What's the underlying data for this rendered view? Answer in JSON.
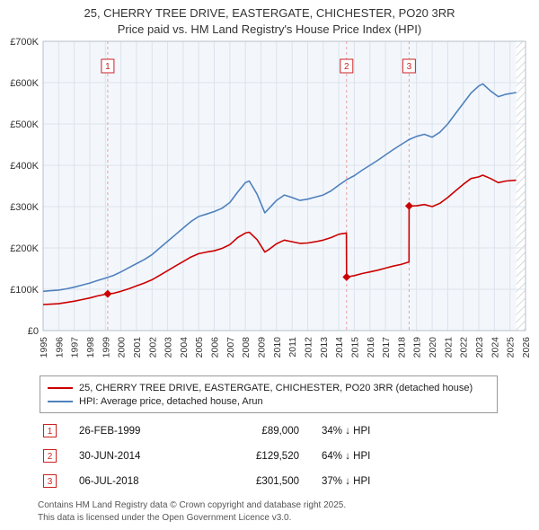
{
  "title": {
    "line1": "25, CHERRY TREE DRIVE, EASTERGATE, CHICHESTER, PO20 3RR",
    "line2": "Price paid vs. HM Land Registry's House Price Index (HPI)"
  },
  "legend": [
    {
      "label": "25, CHERRY TREE DRIVE, EASTERGATE, CHICHESTER, PO20 3RR (detached house)",
      "color": "#cc0000"
    },
    {
      "label": "HPI: Average price, detached house, Arun",
      "color": "#4f81bd"
    }
  ],
  "sales": [
    {
      "num": "1",
      "date": "26-FEB-1999",
      "price": "£89,000",
      "hpi": "34% ↓ HPI"
    },
    {
      "num": "2",
      "date": "30-JUN-2014",
      "price": "£129,520",
      "hpi": "64% ↓ HPI"
    },
    {
      "num": "3",
      "date": "06-JUL-2018",
      "price": "£301,500",
      "hpi": "37% ↓ HPI"
    }
  ],
  "footer": {
    "line1": "Contains HM Land Registry data © Crown copyright and database right 2025.",
    "line2": "This data is licensed under the Open Government Licence v3.0."
  },
  "chart_data": {
    "type": "line",
    "xlim": [
      1995,
      2026
    ],
    "ylim": [
      0,
      700000
    ],
    "yticks": [
      "£0",
      "£100K",
      "£200K",
      "£300K",
      "£400K",
      "£500K",
      "£600K",
      "£700K"
    ],
    "xticks": [
      1995,
      1996,
      1997,
      1998,
      1999,
      2000,
      2001,
      2002,
      2003,
      2004,
      2005,
      2006,
      2007,
      2008,
      2009,
      2010,
      2011,
      2012,
      2013,
      2014,
      2015,
      2016,
      2017,
      2018,
      2019,
      2020,
      2021,
      2022,
      2023,
      2024,
      2025,
      2026
    ],
    "grid": true,
    "plot_bg": "#f3f7fc",
    "grid_color": "#dce3ec",
    "event_line_color": "#e8a0a0",
    "accent_red": "#cc2222",
    "hatch_from": 2025.4,
    "legend_position": "below",
    "series": [
      {
        "name": "25, CHERRY TREE DRIVE, EASTERGATE, CHICHESTER, PO20 3RR (detached house)",
        "color": "#cc0000",
        "points": [
          [
            1995.0,
            63000
          ],
          [
            1995.5,
            64000
          ],
          [
            1996.0,
            65000
          ],
          [
            1996.5,
            68000
          ],
          [
            1997.0,
            71000
          ],
          [
            1997.5,
            75000
          ],
          [
            1998.0,
            79000
          ],
          [
            1998.5,
            84000
          ],
          [
            1999.15,
            89000
          ],
          [
            1999.5,
            90000
          ],
          [
            2000.0,
            95000
          ],
          [
            2000.5,
            101000
          ],
          [
            2001.0,
            108000
          ],
          [
            2001.5,
            115000
          ],
          [
            2002.0,
            123000
          ],
          [
            2002.5,
            134000
          ],
          [
            2003.0,
            145000
          ],
          [
            2003.5,
            156000
          ],
          [
            2004.0,
            167000
          ],
          [
            2004.5,
            178000
          ],
          [
            2005.0,
            186000
          ],
          [
            2005.5,
            190000
          ],
          [
            2006.0,
            193000
          ],
          [
            2006.5,
            199000
          ],
          [
            2007.0,
            208000
          ],
          [
            2007.5,
            225000
          ],
          [
            2008.0,
            236000
          ],
          [
            2008.25,
            238000
          ],
          [
            2008.75,
            220000
          ],
          [
            2009.25,
            190000
          ],
          [
            2009.5,
            196000
          ],
          [
            2010.0,
            210000
          ],
          [
            2010.5,
            219000
          ],
          [
            2011.0,
            215000
          ],
          [
            2011.5,
            211000
          ],
          [
            2012.0,
            212000
          ],
          [
            2012.5,
            215000
          ],
          [
            2013.0,
            219000
          ],
          [
            2013.5,
            225000
          ],
          [
            2014.0,
            233000
          ],
          [
            2014.49,
            236000
          ],
          [
            2014.5,
            129520
          ],
          [
            2015.0,
            133000
          ],
          [
            2015.5,
            138000
          ],
          [
            2016.0,
            142000
          ],
          [
            2016.5,
            146000
          ],
          [
            2017.0,
            151000
          ],
          [
            2017.5,
            156000
          ],
          [
            2018.0,
            160000
          ],
          [
            2018.51,
            166000
          ],
          [
            2018.52,
            301500
          ],
          [
            2019.0,
            302000
          ],
          [
            2019.5,
            305000
          ],
          [
            2020.0,
            300000
          ],
          [
            2020.5,
            308000
          ],
          [
            2021.0,
            322000
          ],
          [
            2021.5,
            338000
          ],
          [
            2022.0,
            354000
          ],
          [
            2022.5,
            368000
          ],
          [
            2023.0,
            372000
          ],
          [
            2023.25,
            376000
          ],
          [
            2023.75,
            368000
          ],
          [
            2024.25,
            358000
          ],
          [
            2024.75,
            362000
          ],
          [
            2025.4,
            364000
          ]
        ]
      },
      {
        "name": "HPI: Average price, detached house, Arun",
        "color": "#4f81bd",
        "points": [
          [
            1995.0,
            95000
          ],
          [
            1995.5,
            96500
          ],
          [
            1996.0,
            98000
          ],
          [
            1996.5,
            101000
          ],
          [
            1997.0,
            105000
          ],
          [
            1997.5,
            110000
          ],
          [
            1998.0,
            115000
          ],
          [
            1998.5,
            121000
          ],
          [
            1999.0,
            127000
          ],
          [
            1999.5,
            133000
          ],
          [
            2000.0,
            142000
          ],
          [
            2000.5,
            152000
          ],
          [
            2001.0,
            162000
          ],
          [
            2001.5,
            172000
          ],
          [
            2002.0,
            184000
          ],
          [
            2002.5,
            200000
          ],
          [
            2003.0,
            216000
          ],
          [
            2003.5,
            232000
          ],
          [
            2004.0,
            248000
          ],
          [
            2004.5,
            264000
          ],
          [
            2005.0,
            276000
          ],
          [
            2005.5,
            282000
          ],
          [
            2006.0,
            288000
          ],
          [
            2006.5,
            296000
          ],
          [
            2007.0,
            310000
          ],
          [
            2007.5,
            335000
          ],
          [
            2008.0,
            358000
          ],
          [
            2008.25,
            362000
          ],
          [
            2008.75,
            330000
          ],
          [
            2009.25,
            285000
          ],
          [
            2009.5,
            295000
          ],
          [
            2010.0,
            315000
          ],
          [
            2010.5,
            328000
          ],
          [
            2011.0,
            322000
          ],
          [
            2011.5,
            315000
          ],
          [
            2012.0,
            318000
          ],
          [
            2012.5,
            323000
          ],
          [
            2013.0,
            328000
          ],
          [
            2013.5,
            338000
          ],
          [
            2014.0,
            352000
          ],
          [
            2014.5,
            365000
          ],
          [
            2015.0,
            375000
          ],
          [
            2015.5,
            388000
          ],
          [
            2016.0,
            400000
          ],
          [
            2016.5,
            412000
          ],
          [
            2017.0,
            425000
          ],
          [
            2017.5,
            438000
          ],
          [
            2018.0,
            450000
          ],
          [
            2018.5,
            462000
          ],
          [
            2019.0,
            470000
          ],
          [
            2019.5,
            475000
          ],
          [
            2020.0,
            468000
          ],
          [
            2020.5,
            480000
          ],
          [
            2021.0,
            500000
          ],
          [
            2021.5,
            525000
          ],
          [
            2022.0,
            550000
          ],
          [
            2022.5,
            575000
          ],
          [
            2023.0,
            592000
          ],
          [
            2023.25,
            597000
          ],
          [
            2023.75,
            580000
          ],
          [
            2024.25,
            566000
          ],
          [
            2024.75,
            572000
          ],
          [
            2025.4,
            576000
          ]
        ]
      }
    ],
    "markers": [
      [
        1999.15,
        89000
      ],
      [
        2014.5,
        129520
      ],
      [
        2018.52,
        301500
      ]
    ],
    "events": [
      {
        "label": "1",
        "x": 1999.15
      },
      {
        "label": "2",
        "x": 2014.5
      },
      {
        "label": "3",
        "x": 2018.52
      }
    ]
  }
}
